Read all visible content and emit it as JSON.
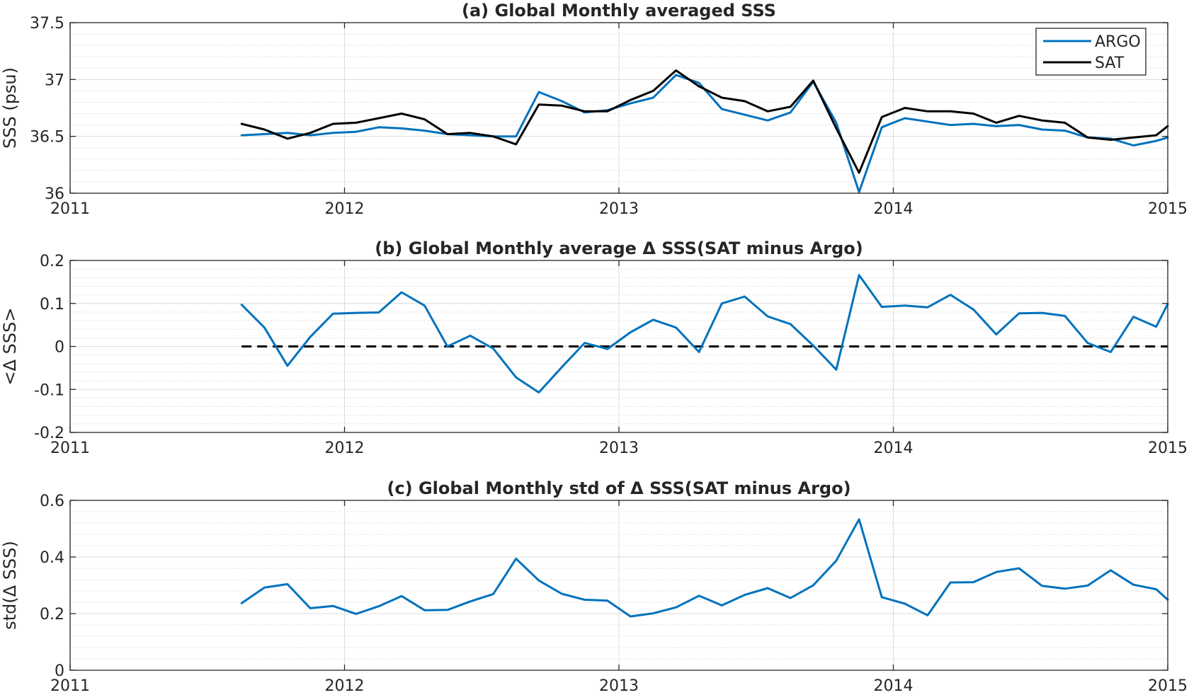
{
  "chart_data": [
    {
      "type": "line",
      "title": "(a) Global Monthly averaged SSS",
      "xlabel": "",
      "ylabel": "SSS (psu)",
      "xlim": [
        2011,
        2015
      ],
      "ylim": [
        36,
        37.5
      ],
      "xticks": [
        "2011",
        "2012",
        "2013",
        "2014",
        "2015"
      ],
      "yticks": [
        "36",
        "36.5",
        "37",
        "37.5"
      ],
      "grid": true,
      "minor_grid": true,
      "legend_position": "top-right",
      "x": [
        2011.625,
        2011.708,
        2011.792,
        2011.875,
        2011.958,
        2012.042,
        2012.125,
        2012.208,
        2012.292,
        2012.375,
        2012.458,
        2012.542,
        2012.625,
        2012.708,
        2012.792,
        2012.875,
        2012.958,
        2013.042,
        2013.125,
        2013.208,
        2013.292,
        2013.375,
        2013.458,
        2013.542,
        2013.625,
        2013.708,
        2013.792,
        2013.875,
        2013.958,
        2014.042,
        2014.125,
        2014.208,
        2014.292,
        2014.375,
        2014.458,
        2014.542,
        2014.625,
        2014.708,
        2014.792,
        2014.875,
        2014.958,
        2015.0
      ],
      "series": [
        {
          "name": "ARGO",
          "color": "#0072BD",
          "values": [
            36.51,
            36.52,
            36.53,
            36.51,
            36.53,
            36.54,
            36.58,
            36.57,
            36.55,
            36.52,
            36.51,
            36.5,
            36.5,
            36.89,
            36.81,
            36.71,
            36.73,
            36.79,
            36.84,
            37.04,
            36.97,
            36.74,
            36.69,
            36.64,
            36.71,
            36.98,
            36.62,
            36.01,
            36.58,
            36.66,
            36.63,
            36.6,
            36.61,
            36.59,
            36.6,
            36.56,
            36.55,
            36.49,
            36.48,
            36.42,
            36.46,
            36.49
          ]
        },
        {
          "name": "SAT",
          "color": "#000000",
          "values": [
            36.61,
            36.56,
            36.48,
            36.53,
            36.61,
            36.62,
            36.66,
            36.7,
            36.65,
            36.52,
            36.53,
            36.5,
            36.43,
            36.78,
            36.77,
            36.72,
            36.72,
            36.82,
            36.9,
            37.08,
            36.94,
            36.84,
            36.81,
            36.72,
            36.76,
            36.99,
            36.57,
            36.18,
            36.67,
            36.75,
            36.72,
            36.72,
            36.7,
            36.62,
            36.68,
            36.64,
            36.62,
            36.49,
            36.47,
            36.49,
            36.51,
            36.59
          ]
        }
      ]
    },
    {
      "type": "line",
      "title": "(b) Global Monthly average Δ SSS(SAT minus Argo)",
      "xlabel": "",
      "ylabel": "<Δ SSS>",
      "xlim": [
        2011,
        2015
      ],
      "ylim": [
        -0.2,
        0.2
      ],
      "xticks": [
        "2011",
        "2012",
        "2013",
        "2014",
        "2015"
      ],
      "yticks": [
        "-0.2",
        "-0.1",
        "0",
        "0.1",
        "0.2"
      ],
      "grid": true,
      "minor_grid": true,
      "reference_line": {
        "y": 0,
        "x_range": [
          2011.625,
          2015.0
        ],
        "style": "dashed",
        "color": "#000000"
      },
      "x": [
        2011.625,
        2011.708,
        2011.792,
        2011.875,
        2011.958,
        2012.042,
        2012.125,
        2012.208,
        2012.292,
        2012.375,
        2012.458,
        2012.542,
        2012.625,
        2012.708,
        2012.792,
        2012.875,
        2012.958,
        2013.042,
        2013.125,
        2013.208,
        2013.292,
        2013.375,
        2013.458,
        2013.542,
        2013.625,
        2013.708,
        2013.792,
        2013.875,
        2013.958,
        2014.042,
        2014.125,
        2014.208,
        2014.292,
        2014.375,
        2014.458,
        2014.542,
        2014.625,
        2014.708,
        2014.792,
        2014.875,
        2014.958,
        2015.0
      ],
      "series": [
        {
          "color": "#0072BD",
          "values": [
            0.097,
            0.044,
            -0.045,
            0.022,
            0.076,
            0.078,
            0.079,
            0.126,
            0.095,
            0.0,
            0.025,
            -0.005,
            -0.072,
            -0.107,
            -0.048,
            0.008,
            -0.006,
            0.033,
            0.062,
            0.044,
            -0.013,
            0.1,
            0.116,
            0.07,
            0.052,
            0.002,
            -0.054,
            0.166,
            0.092,
            0.095,
            0.091,
            0.12,
            0.086,
            0.028,
            0.077,
            0.078,
            0.071,
            0.008,
            -0.013,
            0.069,
            0.046,
            0.099
          ]
        }
      ]
    },
    {
      "type": "line",
      "title": "(c) Global Monthly std of Δ SSS(SAT minus Argo)",
      "xlabel": "",
      "ylabel": "std(Δ SSS)",
      "xlim": [
        2011,
        2015
      ],
      "ylim": [
        0,
        0.6
      ],
      "xticks": [
        "2011",
        "2012",
        "2013",
        "2014",
        "2015"
      ],
      "yticks": [
        "0",
        "0.2",
        "0.4",
        "0.6"
      ],
      "grid": true,
      "minor_grid": true,
      "x": [
        2011.625,
        2011.708,
        2011.792,
        2011.875,
        2011.958,
        2012.042,
        2012.125,
        2012.208,
        2012.292,
        2012.375,
        2012.458,
        2012.542,
        2012.625,
        2012.708,
        2012.792,
        2012.875,
        2012.958,
        2013.042,
        2013.125,
        2013.208,
        2013.292,
        2013.375,
        2013.458,
        2013.542,
        2013.625,
        2013.708,
        2013.792,
        2013.875,
        2013.958,
        2014.042,
        2014.125,
        2014.208,
        2014.292,
        2014.375,
        2014.458,
        2014.542,
        2014.625,
        2014.708,
        2014.792,
        2014.875,
        2014.958,
        2015.0
      ],
      "series": [
        {
          "color": "#0072BD",
          "values": [
            0.237,
            0.292,
            0.304,
            0.219,
            0.227,
            0.199,
            0.226,
            0.262,
            0.212,
            0.213,
            0.243,
            0.269,
            0.394,
            0.317,
            0.27,
            0.249,
            0.246,
            0.19,
            0.201,
            0.222,
            0.263,
            0.229,
            0.266,
            0.29,
            0.255,
            0.3,
            0.387,
            0.533,
            0.258,
            0.235,
            0.194,
            0.31,
            0.311,
            0.347,
            0.36,
            0.298,
            0.288,
            0.299,
            0.353,
            0.302,
            0.286,
            0.249
          ]
        }
      ]
    }
  ]
}
